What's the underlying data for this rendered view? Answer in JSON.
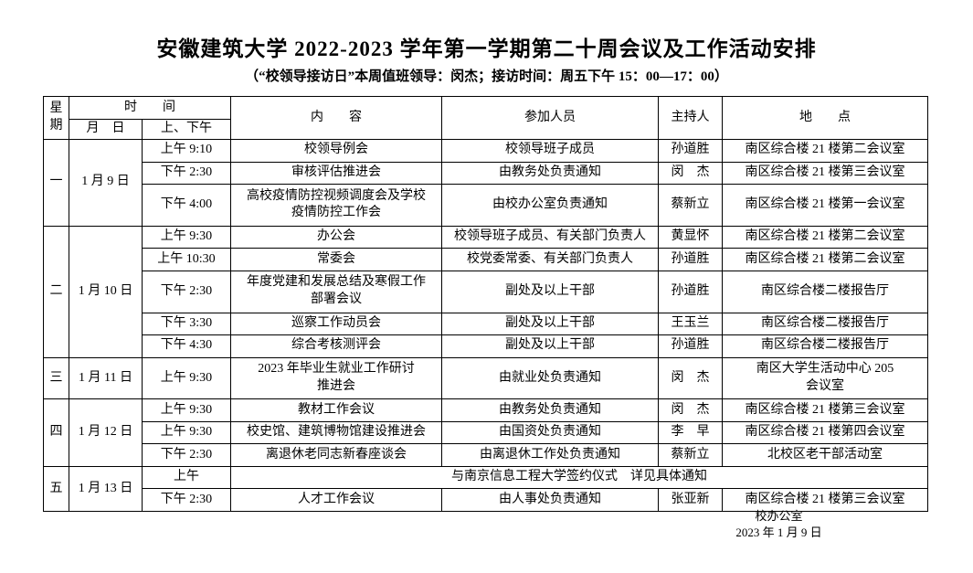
{
  "title": "安徽建筑大学 2022-2023 学年第一学期第二十周会议及工作活动安排",
  "subtitle": "（“校领导接访日”本周值班领导：闵杰；接访时间：周五下午 15：00—17：00）",
  "table": {
    "headers": {
      "weekday": "星期",
      "time_group": "时　　间",
      "date": "月　日",
      "ampm": "上、下午",
      "content": "内　　容",
      "participants": "参加人员",
      "host": "主持人",
      "location": "地　　点"
    },
    "groups": [
      {
        "weekday": "一",
        "date": "1 月 9 日",
        "rows": [
          {
            "time": "上午 9:10",
            "content": "校领导例会",
            "participants": "校领导班子成员",
            "host": "孙道胜",
            "location": "南区综合楼 21 楼第二会议室"
          },
          {
            "time": "下午 2:30",
            "content": "审核评估推进会",
            "participants": "由教务处负责通知",
            "host": "闵　杰",
            "location": "南区综合楼 21 楼第三会议室"
          },
          {
            "time": "下午 4:00",
            "content": "高校疫情防控视频调度会及学校\n疫情防控工作会",
            "participants": "由校办公室负责通知",
            "host": "蔡新立",
            "location": "南区综合楼 21 楼第一会议室"
          }
        ]
      },
      {
        "weekday": "二",
        "date": "1 月 10 日",
        "rows": [
          {
            "time": "上午 9:30",
            "content": "办公会",
            "participants": "校领导班子成员、有关部门负责人",
            "host": "黄显怀",
            "location": "南区综合楼 21 楼第二会议室"
          },
          {
            "time": "上午 10:30",
            "content": "常委会",
            "participants": "校党委常委、有关部门负责人",
            "host": "孙道胜",
            "location": "南区综合楼 21 楼第二会议室"
          },
          {
            "time": "下午 2:30",
            "content": "年度党建和发展总结及寒假工作\n部署会议",
            "participants": "副处及以上干部",
            "host": "孙道胜",
            "location": "南区综合楼二楼报告厅"
          },
          {
            "time": "下午 3:30",
            "content": "巡察工作动员会",
            "participants": "副处及以上干部",
            "host": "王玉兰",
            "location": "南区综合楼二楼报告厅"
          },
          {
            "time": "下午 4:30",
            "content": "综合考核测评会",
            "participants": "副处及以上干部",
            "host": "孙道胜",
            "location": "南区综合楼二楼报告厅"
          }
        ]
      },
      {
        "weekday": "三",
        "date": "1 月 11 日",
        "rows": [
          {
            "time": "上午 9:30",
            "content": "2023 年毕业生就业工作研讨\n推进会",
            "participants": "由就业处负责通知",
            "host": "闵　杰",
            "location": "南区大学生活动中心 205\n会议室"
          }
        ]
      },
      {
        "weekday": "四",
        "date": "1 月 12 日",
        "rows": [
          {
            "time": "上午 9:30",
            "content": "教材工作会议",
            "participants": "由教务处负责通知",
            "host": "闵　杰",
            "location": "南区综合楼 21 楼第三会议室"
          },
          {
            "time": "上午 9:30",
            "content": "校史馆、建筑博物馆建设推进会",
            "participants": "由国资处负责通知",
            "host": "李　早",
            "location": "南区综合楼 21 楼第四会议室"
          },
          {
            "time": "下午 2:30",
            "content": "离退休老同志新春座谈会",
            "participants": "由离退休工作处负责通知",
            "host": "蔡新立",
            "location": "北校区老干部活动室"
          }
        ]
      },
      {
        "weekday": "五",
        "date": "1 月 13 日",
        "rows": [
          {
            "time": "上午",
            "merged_text": "与南京信息工程大学签约仪式　详见具体通知"
          },
          {
            "time": "下午 2:30",
            "content": "人才工作会议",
            "participants": "由人事处负责通知",
            "host": "张亚新",
            "location": "南区综合楼 21 楼第三会议室"
          }
        ]
      }
    ]
  },
  "footer": {
    "office": "校办公室",
    "date": "2023 年 1 月 9 日"
  }
}
